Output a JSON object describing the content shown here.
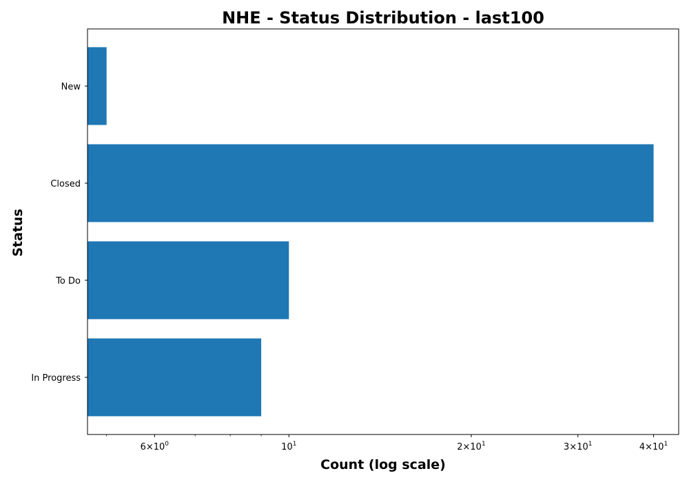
{
  "chart_data": {
    "type": "bar",
    "orientation": "horizontal",
    "title": "NHE - Status Distribution - last100",
    "xlabel": "Count (log scale)",
    "ylabel": "Status",
    "x_scale": "log",
    "xlim": [
      4.65,
      44
    ],
    "categories": [
      "In Progress",
      "To Do",
      "Closed",
      "New"
    ],
    "values": [
      9,
      10,
      40,
      5
    ],
    "x_major_ticks": [
      {
        "value": 6,
        "mantissa": "6",
        "exp": "0"
      },
      {
        "value": 10,
        "mantissa": "",
        "exp": "1"
      },
      {
        "value": 20,
        "mantissa": "2",
        "exp": "1"
      },
      {
        "value": 30,
        "mantissa": "3",
        "exp": "1"
      },
      {
        "value": 40,
        "mantissa": "4",
        "exp": "1"
      }
    ],
    "x_minor_ticks": [
      5,
      7,
      8,
      9
    ],
    "bar_color": "#1f77b4",
    "grid": false,
    "legend": "none"
  }
}
